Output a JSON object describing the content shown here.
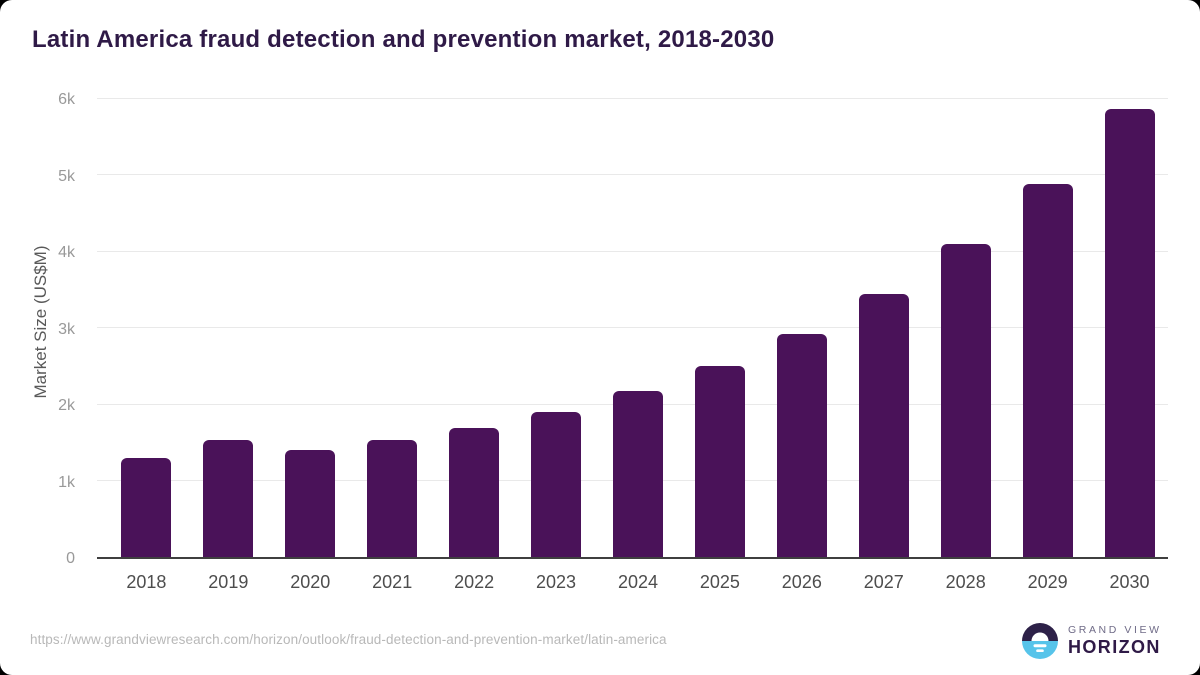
{
  "chart_data": {
    "type": "bar",
    "title": "Latin America fraud detection and prevention market, 2018-2030",
    "xlabel": "",
    "ylabel": "Market Size (US$M)",
    "categories": [
      "2018",
      "2019",
      "2020",
      "2021",
      "2022",
      "2023",
      "2024",
      "2025",
      "2026",
      "2027",
      "2028",
      "2029",
      "2030"
    ],
    "values": [
      1290,
      1530,
      1400,
      1530,
      1690,
      1900,
      2170,
      2500,
      2920,
      3440,
      4090,
      4870,
      5850
    ],
    "ylim": [
      0,
      6000
    ],
    "ytick_values": [
      0,
      1000,
      2000,
      3000,
      4000,
      5000,
      6000
    ],
    "ytick_labels": [
      "0",
      "1k",
      "2k",
      "3k",
      "4k",
      "5k",
      "6k"
    ],
    "grid": "horizontal-only",
    "legend": "none",
    "bar_color": "#4a1259",
    "gridline_color": "#e9e9e9",
    "baseline_color": "#3f3f3f"
  },
  "footer": {
    "source_url": "https://www.grandviewresearch.com/horizon/outlook/fraud-detection-and-prevention-market/latin-america",
    "logo": {
      "brand": "GRAND VIEW",
      "product": "HORIZON",
      "mark_top_color": "#2d2148",
      "mark_bottom_color": "#57c4ea"
    }
  }
}
